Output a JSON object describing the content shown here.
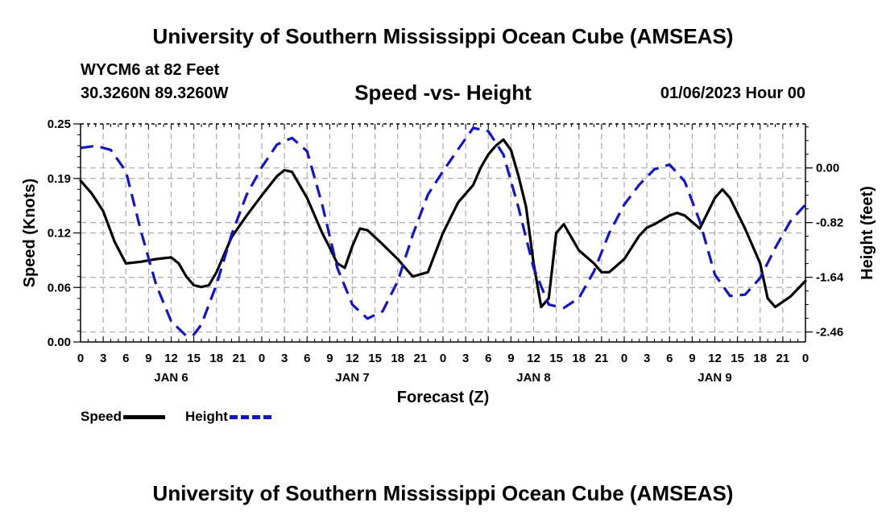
{
  "header": {
    "title": "University of Southern Mississippi Ocean Cube (AMSEAS)",
    "station": "WYCM6 at 82 Feet",
    "coords": "30.3260N  89.3260W",
    "subtitle": "Speed -vs- Height",
    "datetime": "01/06/2023 Hour 00",
    "footer_title": "University of Southern Mississippi Ocean Cube (AMSEAS)"
  },
  "legend": {
    "speed_label": "Speed",
    "height_label": "Height"
  },
  "colors": {
    "speed": "#000000",
    "height": "#1515c8",
    "grid": "#aaaaaa"
  },
  "chart_data": {
    "type": "line",
    "title": "Speed -vs- Height",
    "xlabel": "Forecast (Z)",
    "ylabel_left": "Speed (Knots)",
    "ylabel_right": "Height (feet)",
    "xlim": [
      0,
      96
    ],
    "ylim_left": [
      0,
      0.25
    ],
    "ylim_right": [
      -2.61,
      0.66
    ],
    "x_tick_labels": [
      "0",
      "3",
      "6",
      "9",
      "12",
      "15",
      "18",
      "21",
      "0",
      "3",
      "6",
      "9",
      "12",
      "15",
      "18",
      "21",
      "0",
      "3",
      "6",
      "9",
      "12",
      "15",
      "18",
      "21",
      "0",
      "3",
      "6",
      "9",
      "12",
      "15",
      "18",
      "21",
      "0"
    ],
    "day_labels": [
      {
        "x": 12,
        "label": "JAN 6"
      },
      {
        "x": 36,
        "label": "JAN 7"
      },
      {
        "x": 60,
        "label": "JAN 8"
      },
      {
        "x": 84,
        "label": "JAN 9"
      }
    ],
    "y_left_ticks": [
      {
        "value": 0.0,
        "label": "0.00"
      },
      {
        "value": 0.0625,
        "label": "0.06"
      },
      {
        "value": 0.125,
        "label": "0.12"
      },
      {
        "value": 0.1875,
        "label": "0.19"
      },
      {
        "value": 0.25,
        "label": "0.25"
      }
    ],
    "y_right_ticks": [
      {
        "value": 0.0,
        "label": "0.00"
      },
      {
        "value": -0.82,
        "label": "-0.82"
      },
      {
        "value": -1.64,
        "label": "-1.64"
      },
      {
        "value": -2.46,
        "label": "-2.46"
      }
    ],
    "series": [
      {
        "name": "Speed",
        "axis": "left",
        "style": "solid",
        "x": [
          0,
          1.5,
          3,
          4.5,
          6,
          8,
          10,
          12,
          13,
          14,
          15,
          16,
          17,
          18,
          20,
          22,
          24,
          26,
          27,
          28,
          30,
          32,
          33,
          34,
          35,
          36,
          37,
          38,
          40,
          42,
          43,
          44,
          46,
          48,
          50,
          52,
          53,
          54,
          55,
          56,
          57,
          58,
          59,
          60,
          61,
          62,
          63,
          64,
          66,
          68,
          69,
          70,
          72,
          74,
          75,
          76,
          77,
          78,
          79,
          80,
          82,
          84,
          85,
          86,
          88,
          90,
          91,
          92,
          94,
          96
        ],
        "y": [
          0.185,
          0.17,
          0.15,
          0.115,
          0.09,
          0.092,
          0.095,
          0.097,
          0.09,
          0.075,
          0.065,
          0.063,
          0.065,
          0.08,
          0.12,
          0.145,
          0.168,
          0.19,
          0.197,
          0.195,
          0.165,
          0.125,
          0.108,
          0.09,
          0.085,
          0.11,
          0.13,
          0.128,
          0.112,
          0.095,
          0.085,
          0.075,
          0.08,
          0.125,
          0.16,
          0.18,
          0.2,
          0.215,
          0.225,
          0.232,
          0.22,
          0.19,
          0.155,
          0.09,
          0.04,
          0.05,
          0.125,
          0.135,
          0.105,
          0.09,
          0.08,
          0.08,
          0.095,
          0.122,
          0.131,
          0.135,
          0.14,
          0.145,
          0.148,
          0.145,
          0.13,
          0.165,
          0.175,
          0.165,
          0.13,
          0.09,
          0.05,
          0.04,
          0.052,
          0.07
        ]
      },
      {
        "name": "Height",
        "axis": "right",
        "style": "dashed",
        "x": [
          0,
          2,
          4,
          6,
          8,
          10,
          12,
          14,
          15,
          16,
          18,
          20,
          22,
          24,
          26,
          28,
          30,
          32,
          34,
          36,
          38,
          40,
          42,
          44,
          46,
          48,
          50,
          52,
          54,
          56,
          58,
          60,
          62,
          64,
          66,
          68,
          70,
          72,
          74,
          76,
          78,
          80,
          82,
          84,
          86,
          88,
          90,
          92,
          94,
          96
        ],
        "y": [
          0.3,
          0.33,
          0.27,
          -0.05,
          -0.95,
          -1.75,
          -2.3,
          -2.52,
          -2.5,
          -2.35,
          -1.75,
          -1.0,
          -0.4,
          0.01,
          0.35,
          0.45,
          0.25,
          -0.55,
          -1.5,
          -2.05,
          -2.26,
          -2.15,
          -1.7,
          -1.0,
          -0.4,
          -0.05,
          0.28,
          0.6,
          0.55,
          0.2,
          -0.6,
          -1.5,
          -2.05,
          -2.1,
          -1.95,
          -1.55,
          -0.98,
          -0.55,
          -0.25,
          -0.02,
          0.05,
          -0.2,
          -0.8,
          -1.6,
          -1.92,
          -1.9,
          -1.65,
          -1.2,
          -0.8,
          -0.55
        ]
      }
    ]
  }
}
